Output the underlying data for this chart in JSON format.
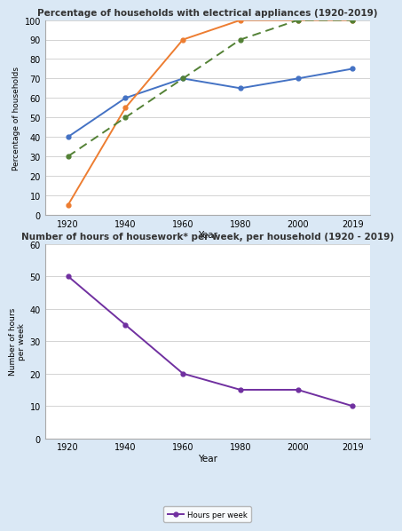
{
  "years": [
    1920,
    1940,
    1960,
    1980,
    2000,
    2019
  ],
  "washing_machine": [
    40,
    60,
    70,
    65,
    70,
    75
  ],
  "refrigerator": [
    5,
    55,
    90,
    100,
    100,
    100
  ],
  "vacuum_cleaner": [
    30,
    50,
    70,
    90,
    100,
    100
  ],
  "hours_per_week": [
    50,
    35,
    20,
    15,
    15,
    10
  ],
  "title1": "Percentage of households with electrical appliances (1920-2019)",
  "title2": "Number of hours of housework* per week, per household (1920 - 2019)",
  "ylabel1": "Percentage of households",
  "ylabel2": "Number of hours\nper week",
  "xlabel": "Year",
  "washing_color": "#4472C4",
  "refrigerator_color": "#ED7D31",
  "vacuum_color": "#538135",
  "hours_color": "#7030A0",
  "bg_color": "#DAE8F5",
  "plot_bg": "#FFFFFF",
  "ylim1": [
    0,
    100
  ],
  "ylim2": [
    0,
    60
  ],
  "yticks1": [
    0,
    10,
    20,
    30,
    40,
    50,
    60,
    70,
    80,
    90,
    100
  ],
  "yticks2": [
    0,
    10,
    20,
    30,
    40,
    50,
    60
  ]
}
